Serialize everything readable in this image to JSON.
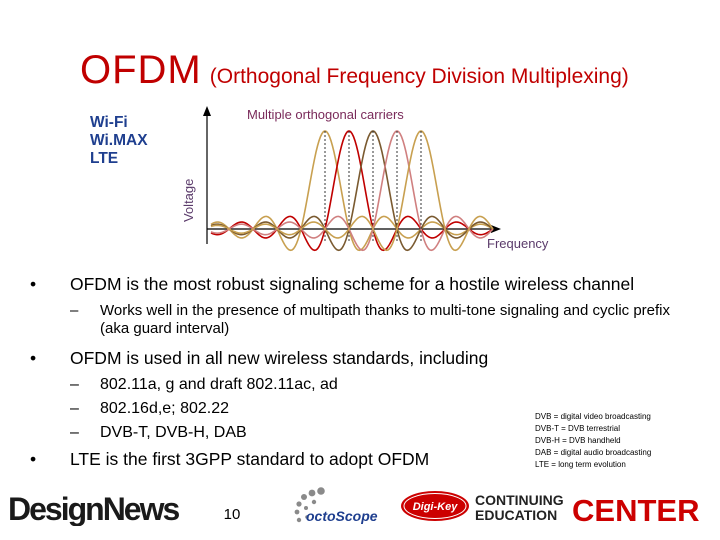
{
  "title": {
    "main": "OFDM",
    "sub": "(Orthogonal Frequency Division Multiplexing)"
  },
  "standards_label": [
    "Wi-Fi",
    "Wi.MAX",
    "LTE"
  ],
  "chart_data": {
    "type": "line",
    "title": "Multiple orthogonal carriers",
    "xlabel": "Frequency",
    "ylabel": "Voltage",
    "carriers": 5,
    "colors": [
      "#c8a050",
      "#c00000",
      "#7a5a30",
      "#d08080"
    ]
  },
  "bullets": [
    {
      "text": "OFDM is the most robust signaling scheme for a hostile wireless channel",
      "sub": [
        {
          "text": "Works well in the presence of multipath thanks to multi-tone signaling and cyclic prefix (aka guard interval)"
        }
      ]
    },
    {
      "text": "OFDM is used in all new wireless standards, including",
      "sub": [
        {
          "text": "802.11a, g and draft 802.11ac, ad"
        },
        {
          "text": "802.16d,e; 802.22"
        },
        {
          "text": "DVB-T, DVB-H, DAB"
        }
      ]
    },
    {
      "text": "LTE is the first 3GPP standard to adopt OFDM",
      "sub": []
    }
  ],
  "notes": [
    "DVB = digital video broadcasting",
    "DVB-T = DVB terrestrial",
    "DVB-H = DVB handheld",
    "DAB = digital audio broadcasting",
    "LTE = long term evolution"
  ],
  "page_number": "10",
  "logos": {
    "design_news": "DesignNews",
    "octoscope": "octoScope",
    "digikey": "Digi-Key",
    "ce_line1": "CONTINUING",
    "ce_line2": "EDUCATION",
    "ce_big": "CENTER"
  },
  "colors": {
    "title": "#c00000",
    "label_blue": "#1f3f8f",
    "chart_label": "#7a2a5a",
    "axis_text": "#5a3a6a",
    "ce_red": "#cc0000"
  }
}
